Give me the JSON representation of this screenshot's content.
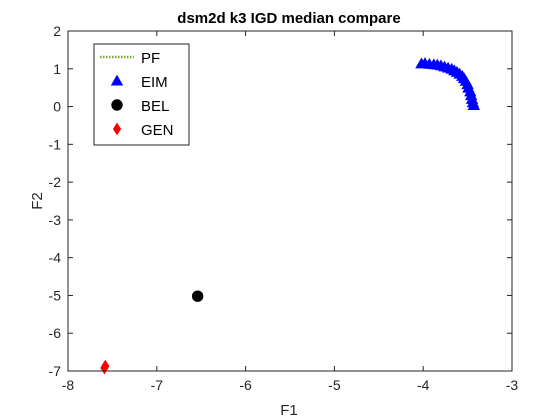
{
  "chart_data": {
    "type": "scatter",
    "title": "dsm2d k3 IGD median compare",
    "xlabel": "F1",
    "ylabel": "F2",
    "xlim": [
      -8,
      -3
    ],
    "ylim": [
      -7,
      2
    ],
    "xticks": [
      "-8",
      "-7",
      "-6",
      "-5",
      "-4",
      "-3"
    ],
    "yticks": [
      "-7",
      "-6",
      "-5",
      "-4",
      "-3",
      "-2",
      "-1",
      "0",
      "1",
      "2"
    ],
    "grid": false,
    "legend_position": "top-left",
    "series": [
      {
        "name": "PF",
        "marker": "dotted-line",
        "color": "#77ac30",
        "points": []
      },
      {
        "name": "EIM",
        "marker": "triangle",
        "color": "#0000ff",
        "points": [
          [
            -4.02,
            1.13
          ],
          [
            -3.98,
            1.14
          ],
          [
            -3.93,
            1.12
          ],
          [
            -3.88,
            1.11
          ],
          [
            -3.84,
            1.1
          ],
          [
            -3.8,
            1.08
          ],
          [
            -3.76,
            1.05
          ],
          [
            -3.72,
            1.02
          ],
          [
            -3.68,
            0.99
          ],
          [
            -3.65,
            0.95
          ],
          [
            -3.62,
            0.91
          ],
          [
            -3.59,
            0.86
          ],
          [
            -3.56,
            0.8
          ],
          [
            -3.54,
            0.74
          ],
          [
            -3.52,
            0.67
          ],
          [
            -3.5,
            0.58
          ],
          [
            -3.49,
            0.49
          ],
          [
            -3.47,
            0.39
          ],
          [
            -3.46,
            0.29
          ],
          [
            -3.45,
            0.19
          ],
          [
            -3.44,
            0.1
          ],
          [
            -3.43,
            0.03
          ]
        ]
      },
      {
        "name": "BEL",
        "marker": "circle",
        "color": "#000000",
        "points": [
          [
            -6.54,
            -5.02
          ]
        ]
      },
      {
        "name": "GEN",
        "marker": "diamond",
        "color": "#ff0000",
        "points": [
          [
            -7.58,
            -6.87
          ],
          [
            -7.59,
            -6.92
          ]
        ]
      }
    ]
  }
}
